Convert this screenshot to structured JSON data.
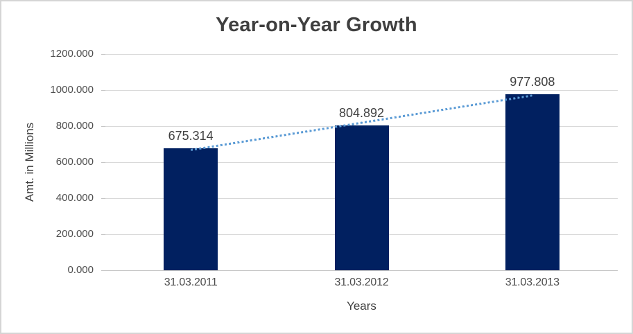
{
  "chart_data": {
    "type": "bar",
    "title": "Year-on-Year Growth",
    "xlabel": "Years",
    "ylabel": "Amt. in Millions",
    "categories": [
      "31.03.2011",
      "31.03.2012",
      "31.03.2013"
    ],
    "values": [
      675.314,
      804.892,
      977.808
    ],
    "value_labels": [
      "675.314",
      "804.892",
      "977.808"
    ],
    "ylim": [
      0,
      1200
    ],
    "ytick_values": [
      0,
      200,
      400,
      600,
      800,
      1000,
      1200
    ],
    "ytick_labels": [
      "0.000",
      "200.000",
      "400.000",
      "600.000",
      "800.000",
      "1000.000",
      "1200.000"
    ],
    "grid": "horizontal",
    "legend": "none",
    "trendline": {
      "type": "linear",
      "style": "dotted"
    },
    "colors": {
      "bar": "#012060",
      "trendline": "#5B9BD5",
      "gridline": "#D9D9D9",
      "axis_line": "#C6C6C6",
      "title_text": "#3F3F3F",
      "data_label_text": "#404040",
      "tick_label_text": "#4D4D4D",
      "border": "#D5D5D5"
    }
  }
}
